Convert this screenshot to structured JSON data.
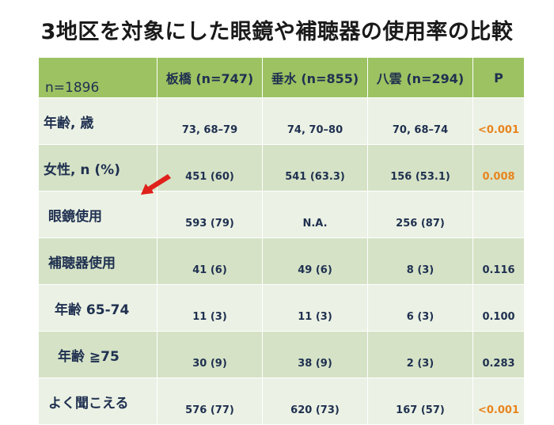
{
  "title": "3地区を対象にした眼鏡や補聴器の使用率の比較",
  "table": {
    "corner": "n=1896",
    "headers": [
      "板橋 (n=747)",
      "垂水 (n=855)",
      "八雲 (n=294)",
      "P"
    ],
    "rows": [
      {
        "label": "年齢, 歳",
        "cells": [
          "73, 68–79",
          "74, 70–80",
          "70, 68–74",
          "<0.001"
        ],
        "p_highlight": true
      },
      {
        "label": "女性, n (%)",
        "cells": [
          "451 (60)",
          "541 (63.3)",
          "156 (53.1)",
          "0.008"
        ],
        "p_highlight": true
      },
      {
        "label": "眼鏡使用",
        "cells": [
          "593 (79)",
          "N.A.",
          "256 (87)",
          ""
        ],
        "p_highlight": false
      },
      {
        "label": "補聴器使用",
        "cells": [
          "41 (6)",
          "49 (6)",
          "8 (3)",
          "0.116"
        ],
        "p_highlight": false
      },
      {
        "label": "年齢 65-74",
        "cells": [
          "11 (3)",
          "11 (3)",
          "6 (3)",
          "0.100"
        ],
        "p_highlight": false
      },
      {
        "label": "年齢 ≧75",
        "cells": [
          "30 (9)",
          "38 (9)",
          "2 (3)",
          "0.283"
        ],
        "p_highlight": false
      },
      {
        "label": "よく聞こえる",
        "cells": [
          "576 (77)",
          "620 (73)",
          "167 (57)",
          "<0.001"
        ],
        "p_highlight": true
      }
    ]
  },
  "colors": {
    "header_bg": "#9cc262",
    "row_dark": "#d5e2c6",
    "row_light": "#ebf1e4",
    "significant_p": "#e8841e",
    "arrow": "#e0201a"
  },
  "arrow_icon": "red-arrow-pointing-down-left"
}
